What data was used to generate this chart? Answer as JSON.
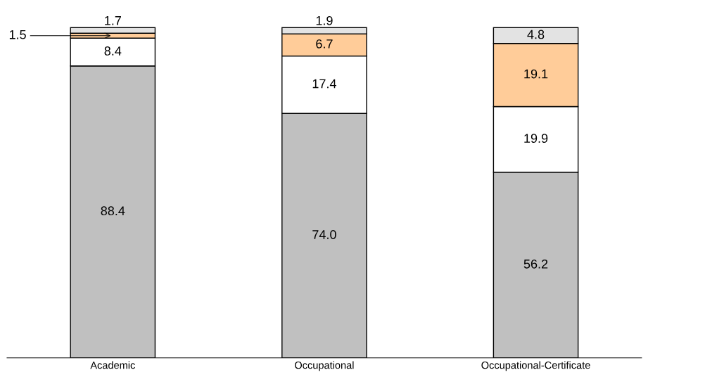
{
  "chart_data": {
    "type": "bar",
    "stacked": true,
    "tick_labels": "x",
    "categories": [
      "Academic",
      "Occupational",
      "Occupational-Certificate"
    ],
    "series": [
      {
        "color": "#c0c0c0",
        "values": [
          88.4,
          74.0,
          56.2
        ],
        "value_labels": [
          "88.4",
          "74.0",
          "56.2"
        ]
      },
      {
        "color": "#ffffff",
        "values": [
          8.4,
          17.4,
          19.9
        ],
        "value_labels": [
          "8.4",
          "17.4",
          "19.9"
        ]
      },
      {
        "color": "#ffcc99",
        "values": [
          1.5,
          6.7,
          19.1
        ],
        "value_labels": [
          null,
          "6.7",
          "19.1"
        ]
      },
      {
        "color": "#e3e3e3",
        "values": [
          1.7,
          1.9,
          4.8
        ],
        "value_labels": [
          "1.7",
          "1.9",
          "4.8"
        ]
      }
    ],
    "annotations": [
      {
        "text": "1.5",
        "x": "Academic",
        "y": 97.55
      }
    ]
  }
}
